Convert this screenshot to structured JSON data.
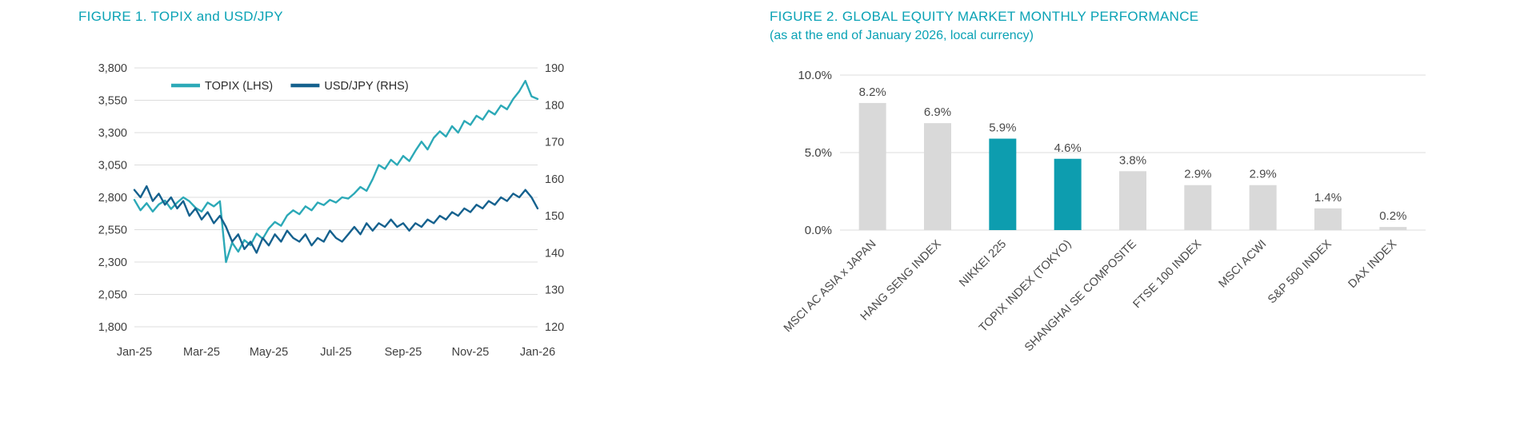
{
  "theme": {
    "accent_teal": "#0AA2B5",
    "text_color": "#3F3F3F",
    "grid_color": "#DCDCDC",
    "background": "#FFFFFF"
  },
  "chart_data": [
    {
      "type": "line",
      "title": "FIGURE 1. TOPIX and USD/JPY",
      "grid": true,
      "legend_position": "top-inside",
      "x_tick_labels": [
        "Jan-25",
        "Mar-25",
        "May-25",
        "Jul-25",
        "Sep-25",
        "Nov-25",
        "Jan-26"
      ],
      "y_left": {
        "lim": [
          1800,
          3800
        ],
        "tick_values": [
          1800,
          2050,
          2300,
          2550,
          2800,
          3050,
          3300,
          3550,
          3800
        ],
        "tick_labels": [
          "1,800",
          "2,050",
          "2,300",
          "2,550",
          "2,800",
          "3,050",
          "3,300",
          "3,550",
          "3,800"
        ]
      },
      "y_right": {
        "lim": [
          120,
          190
        ],
        "tick_values": [
          120,
          130,
          140,
          150,
          160,
          170,
          180,
          190
        ],
        "tick_labels": [
          "120",
          "130",
          "140",
          "150",
          "160",
          "170",
          "180",
          "190"
        ]
      },
      "series": [
        {
          "name": "TOPIX (LHS)",
          "axis": "left",
          "color": "#2CA9B7",
          "values": [
            2780,
            2700,
            2755,
            2690,
            2745,
            2775,
            2710,
            2760,
            2800,
            2770,
            2720,
            2690,
            2760,
            2730,
            2770,
            2300,
            2450,
            2380,
            2470,
            2430,
            2520,
            2480,
            2560,
            2610,
            2580,
            2660,
            2700,
            2670,
            2730,
            2700,
            2760,
            2740,
            2780,
            2760,
            2800,
            2790,
            2830,
            2880,
            2850,
            2940,
            3050,
            3020,
            3090,
            3050,
            3120,
            3080,
            3160,
            3230,
            3170,
            3260,
            3310,
            3270,
            3350,
            3300,
            3390,
            3360,
            3430,
            3400,
            3470,
            3440,
            3510,
            3480,
            3560,
            3620,
            3700,
            3580,
            3560
          ]
        },
        {
          "name": "USD/JPY (RHS)",
          "axis": "right",
          "color": "#15618E",
          "values": [
            157,
            155,
            158,
            154,
            156,
            153,
            155,
            152,
            154,
            150,
            152,
            149,
            151,
            148,
            150,
            147,
            143,
            145,
            141,
            143,
            140,
            144,
            142,
            145,
            143,
            146,
            144,
            143,
            145,
            142,
            144,
            143,
            146,
            144,
            143,
            145,
            147,
            145,
            148,
            146,
            148,
            147,
            149,
            147,
            148,
            146,
            148,
            147,
            149,
            148,
            150,
            149,
            151,
            150,
            152,
            151,
            153,
            152,
            154,
            153,
            155,
            154,
            156,
            155,
            157,
            155,
            152
          ]
        }
      ]
    },
    {
      "type": "bar",
      "title": "FIGURE 2. GLOBAL EQUITY MARKET MONTHLY PERFORMANCE",
      "subtitle": "(as at the end of January 2026, local currency)",
      "categories": [
        "MSCI AC ASIA x JAPAN",
        "HANG SENG INDEX",
        "NIKKEI 225",
        "TOPIX INDEX (TOKYO)",
        "SHANGHAI SE COMPOSITE",
        "FTSE 100 INDEX",
        "MSCI ACWI",
        "S&P 500 INDEX",
        "DAX INDEX"
      ],
      "values": [
        8.2,
        6.9,
        5.9,
        4.6,
        3.8,
        2.9,
        2.9,
        1.4,
        0.2
      ],
      "value_labels": [
        "8.2%",
        "6.9%",
        "5.9%",
        "4.6%",
        "3.8%",
        "2.9%",
        "2.9%",
        "1.4%",
        "0.2%"
      ],
      "highlighted_categories": [
        "NIKKEI 225",
        "TOPIX INDEX (TOKYO)"
      ],
      "colors": {
        "bar_default": "#D9D9D9",
        "bar_highlight": "#0D9DAF"
      },
      "ylim": [
        0,
        10
      ],
      "y_tick_values": [
        0,
        5,
        10
      ],
      "y_tick_labels": [
        "0.0%",
        "5.0%",
        "10.0%"
      ],
      "grid": true,
      "legend_position": "none"
    }
  ]
}
